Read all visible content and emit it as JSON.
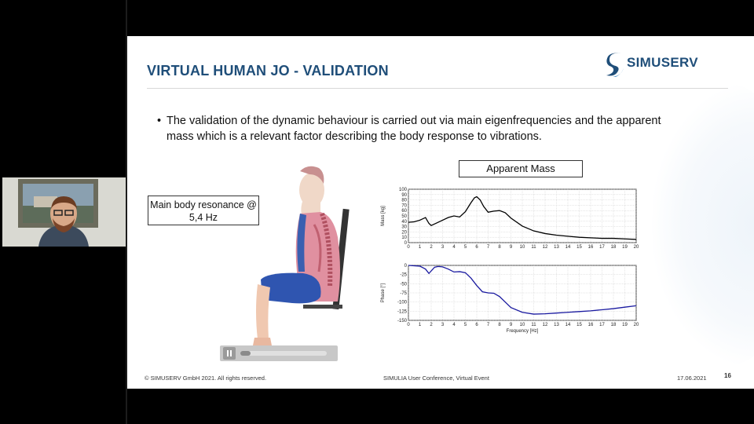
{
  "slide": {
    "title": "VIRTUAL HUMAN JO - VALIDATION",
    "logo_text": "SIMUSERV",
    "bullet": "The validation of the dynamic behaviour is carried out via main eigenfrequencies and the apparent mass which is a relevant factor describing the body response to vibrations.",
    "callout": "Main body resonance @ 5,4 Hz",
    "mass_box": "Apparent Mass",
    "footer_left": "© SIMUSERV GmbH 2021. All rights reserved.",
    "footer_center": "SIMULIA User Conference, Virtual Event",
    "footer_date": "17.06.2021",
    "page_number": "16",
    "video_progress": 0.12
  },
  "colors": {
    "title": "#1f4e79",
    "mass_line": "#000000",
    "phase_line": "#1a1aa0"
  },
  "chart_data": [
    {
      "type": "line",
      "ylabel": "Mass [kg]",
      "xlabel": "",
      "xlim": [
        0,
        20
      ],
      "ylim": [
        0,
        100
      ],
      "xticks": [
        0,
        1,
        2,
        3,
        4,
        5,
        6,
        7,
        8,
        9,
        10,
        11,
        12,
        13,
        14,
        15,
        16,
        17,
        18,
        19,
        20
      ],
      "yticks": [
        0,
        10,
        20,
        30,
        40,
        50,
        60,
        70,
        80,
        90,
        100
      ],
      "grid": true,
      "series": [
        {
          "x": [
            0,
            0.5,
            1,
            1.5,
            1.8,
            2,
            2.3,
            2.6,
            3,
            3.5,
            4,
            4.5,
            5,
            5.5,
            5.8,
            6,
            6.3,
            6.6,
            7,
            7.5,
            8,
            8.5,
            9,
            10,
            11,
            12,
            13,
            14,
            15,
            16,
            17,
            18,
            19,
            20
          ],
          "values": [
            38,
            39,
            42,
            47,
            36,
            32,
            35,
            38,
            42,
            47,
            50,
            48,
            58,
            75,
            84,
            86,
            80,
            68,
            57,
            59,
            60,
            56,
            46,
            31,
            22,
            17,
            14,
            12,
            10,
            9,
            8,
            8,
            7,
            6
          ]
        }
      ]
    },
    {
      "type": "line",
      "ylabel": "Phase [°]",
      "xlabel": "Frequency [Hz]",
      "xlim": [
        0,
        20
      ],
      "ylim": [
        -150,
        0
      ],
      "xticks": [
        0,
        1,
        2,
        3,
        4,
        5,
        6,
        7,
        8,
        9,
        10,
        11,
        12,
        13,
        14,
        15,
        16,
        17,
        18,
        19,
        20
      ],
      "yticks": [
        0,
        -25,
        -50,
        -75,
        -100,
        -125,
        -150
      ],
      "grid": true,
      "series": [
        {
          "x": [
            0,
            0.5,
            1,
            1.5,
            1.8,
            2,
            2.3,
            2.6,
            3,
            3.5,
            4,
            4.5,
            5,
            5.5,
            6,
            6.5,
            7,
            7.5,
            8,
            8.5,
            9,
            10,
            11,
            12,
            13,
            14,
            15,
            16,
            17,
            18,
            19,
            20
          ],
          "values": [
            0,
            -1,
            -2,
            -10,
            -22,
            -15,
            -5,
            -3,
            -4,
            -10,
            -18,
            -17,
            -20,
            -35,
            -55,
            -72,
            -75,
            -76,
            -85,
            -100,
            -115,
            -128,
            -133,
            -132,
            -130,
            -128,
            -126,
            -124,
            -121,
            -118,
            -114,
            -110
          ]
        }
      ]
    }
  ]
}
